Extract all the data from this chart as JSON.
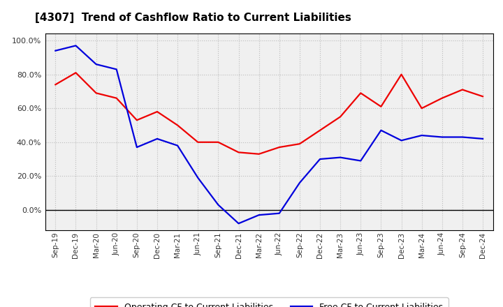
{
  "title": "[4307]  Trend of Cashflow Ratio to Current Liabilities",
  "x_labels": [
    "Sep-19",
    "Dec-19",
    "Mar-20",
    "Jun-20",
    "Sep-20",
    "Dec-20",
    "Mar-21",
    "Jun-21",
    "Sep-21",
    "Dec-21",
    "Mar-22",
    "Jun-22",
    "Sep-22",
    "Dec-22",
    "Mar-23",
    "Jun-23",
    "Sep-23",
    "Dec-23",
    "Mar-24",
    "Jun-24",
    "Sep-24",
    "Dec-24"
  ],
  "operating_cf": [
    0.74,
    0.81,
    0.69,
    0.66,
    0.53,
    0.58,
    0.5,
    0.4,
    0.4,
    0.34,
    0.33,
    0.37,
    0.39,
    0.47,
    0.55,
    0.69,
    0.61,
    0.8,
    0.6,
    0.66,
    0.71,
    0.67
  ],
  "free_cf": [
    0.94,
    0.97,
    0.86,
    0.83,
    0.37,
    0.42,
    0.38,
    0.19,
    0.03,
    -0.08,
    -0.03,
    -0.02,
    0.16,
    0.3,
    0.31,
    0.29,
    0.47,
    0.41,
    0.44,
    0.43,
    0.43,
    0.42
  ],
  "operating_color": "#ee0000",
  "free_color": "#0000dd",
  "ylim": [
    -0.12,
    1.04
  ],
  "yticks": [
    0.0,
    0.2,
    0.4,
    0.6,
    0.8,
    1.0
  ],
  "legend_op": "Operating CF to Current Liabilities",
  "legend_free": "Free CF to Current Liabilities",
  "background_color": "#ffffff",
  "plot_bg_color": "#f0f0f0",
  "grid_color": "#bbbbbb"
}
